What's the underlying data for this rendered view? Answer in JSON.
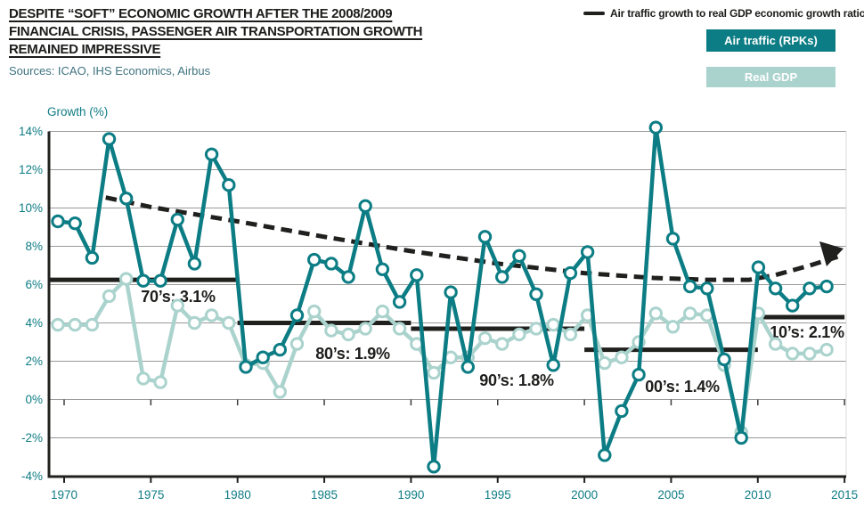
{
  "header": {
    "title_lines": [
      "DESPITE “SOFT” ECONOMIC GROWTH AFTER THE 2008/2009",
      "FINANCIAL CRISIS, PASSENGER AIR TRANSPORTATION GROWTH",
      "REMAINED IMPRESSIVE"
    ],
    "sources": "Sources: ICAO, IHS Economics, Airbus"
  },
  "legend": {
    "ratio_label": "Air traffic growth to real GDP economic growth ratio",
    "air_label": "Air traffic (RPKs)",
    "gdp_label": "Real GDP"
  },
  "colors": {
    "air_teal": "#0c7d84",
    "gdp_teal": "#abd3cd",
    "black": "#20201e",
    "teal_text": "#0e7c85",
    "grid": "#999999"
  },
  "chart_data": {
    "type": "line",
    "ylabel": "Growth (%)",
    "ylim": [
      -4,
      14
    ],
    "ytick_step": 2,
    "ytick_labels": [
      "14%",
      "12%",
      "10%",
      "8%",
      "6%",
      "4%",
      "2%",
      "0%",
      "-2%",
      "-4%"
    ],
    "xticks": [
      1970,
      1975,
      1980,
      1985,
      1990,
      1995,
      2000,
      2005,
      2010,
      2015
    ],
    "x": [
      1970,
      1971,
      1972,
      1973,
      1974,
      1975,
      1976,
      1977,
      1978,
      1979,
      1980,
      1981,
      1982,
      1983,
      1984,
      1985,
      1986,
      1987,
      1988,
      1989,
      1990,
      1991,
      1992,
      1993,
      1994,
      1995,
      1996,
      1997,
      1998,
      1999,
      2000,
      2001,
      2002,
      2003,
      2004,
      2005,
      2006,
      2007,
      2008,
      2009,
      2010,
      2011,
      2012,
      2013,
      2014,
      2015
    ],
    "series": [
      {
        "name": "Air traffic (RPKs)",
        "color": "#0c7d84",
        "values": [
          9.3,
          9.2,
          7.4,
          13.6,
          10.5,
          6.2,
          6.2,
          9.4,
          7.1,
          12.8,
          11.2,
          1.7,
          2.2,
          2.6,
          4.4,
          7.3,
          7.1,
          6.4,
          10.1,
          6.8,
          5.1,
          6.5,
          -3.5,
          5.6,
          1.7,
          8.5,
          6.4,
          7.5,
          5.5,
          1.8,
          6.6,
          7.7,
          -2.9,
          -0.6,
          1.3,
          14.2,
          8.4,
          5.9,
          5.8,
          2.1,
          -2.0,
          6.9,
          5.8,
          4.9,
          5.8,
          5.9
        ]
      },
      {
        "name": "Real GDP",
        "color": "#abd3cd",
        "values": [
          3.9,
          3.9,
          3.9,
          5.4,
          6.3,
          1.1,
          0.9,
          4.9,
          4.0,
          4.4,
          4.0,
          1.8,
          1.9,
          0.4,
          2.9,
          4.6,
          3.6,
          3.4,
          3.7,
          4.6,
          3.7,
          2.9,
          1.4,
          2.2,
          2.2,
          3.2,
          2.9,
          3.4,
          3.7,
          3.9,
          3.4,
          4.4,
          1.9,
          2.2,
          3.0,
          4.5,
          3.8,
          4.5,
          4.4,
          1.8,
          -1.7,
          4.5,
          2.9,
          2.4,
          2.4,
          2.6
        ]
      }
    ],
    "trend": {
      "name": "Air traffic growth to real GDP economic growth ratio",
      "style": "dashed-arrow",
      "points": [
        [
          1972.4,
          10.55
        ],
        [
          1975,
          10.05
        ],
        [
          1980,
          9.3
        ],
        [
          1985,
          8.5
        ],
        [
          1990,
          7.75
        ],
        [
          1995,
          7.1
        ],
        [
          2000,
          6.6
        ],
        [
          2004,
          6.35
        ],
        [
          2007,
          6.25
        ],
        [
          2009.5,
          6.25
        ],
        [
          2011,
          6.5
        ],
        [
          2013,
          7.0
        ],
        [
          2014.6,
          7.45
        ]
      ]
    },
    "decade_averages": [
      {
        "label": "70’s: 3.1%",
        "from": 1970,
        "to": 1980,
        "line_level": 6.25
      },
      {
        "label": "80’s: 1.9%",
        "from": 1980,
        "to": 1990,
        "line_level": 4.0
      },
      {
        "label": "90’s: 1.8%",
        "from": 1990,
        "to": 2000,
        "line_level": 3.7
      },
      {
        "label": "00’s: 1.4%",
        "from": 2000,
        "to": 2010,
        "line_level": 2.6
      },
      {
        "label": "10’s: 2.1%",
        "from": 2010,
        "to": 2015,
        "line_level": 4.3
      }
    ],
    "legend_position": "top-right",
    "grid": true
  }
}
